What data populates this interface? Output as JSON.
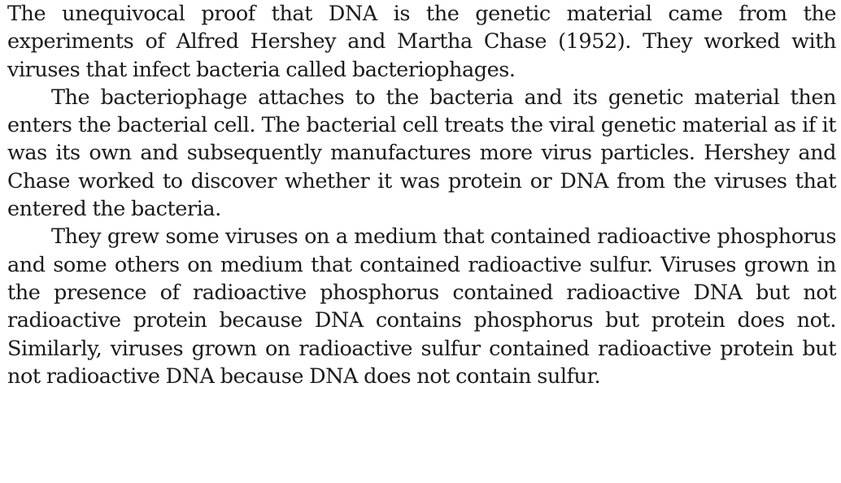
{
  "paragraphs": [
    "The unequivocal proof that DNA is the genetic material came from the experiments of Alfred Hershey and Martha Chase (1952). They worked with viruses that infect bacteria called bacteriophages.",
    "The bacteriophage attaches to the bacteria and its genetic material then enters the bacterial cell. The bacterial cell treats the viral genetic material as if it was its own and subsequently manufactures more virus particles. Hershey and Chase worked to discover whether it was protein or DNA from the viruses that entered the bacteria.",
    "They grew some viruses on a medium that contained radioactive phosphorus and some others on medium that contained radioactive sulfur. Viruses grown in the presence of radioactive phosphorus contained radioactive DNA but not radioactive protein because DNA contains phosphorus but protein does not. Similarly, viruses grown on radioactive sulfur contained radioactive protein but not radioactive DNA because DNA does not contain sulfur."
  ]
}
